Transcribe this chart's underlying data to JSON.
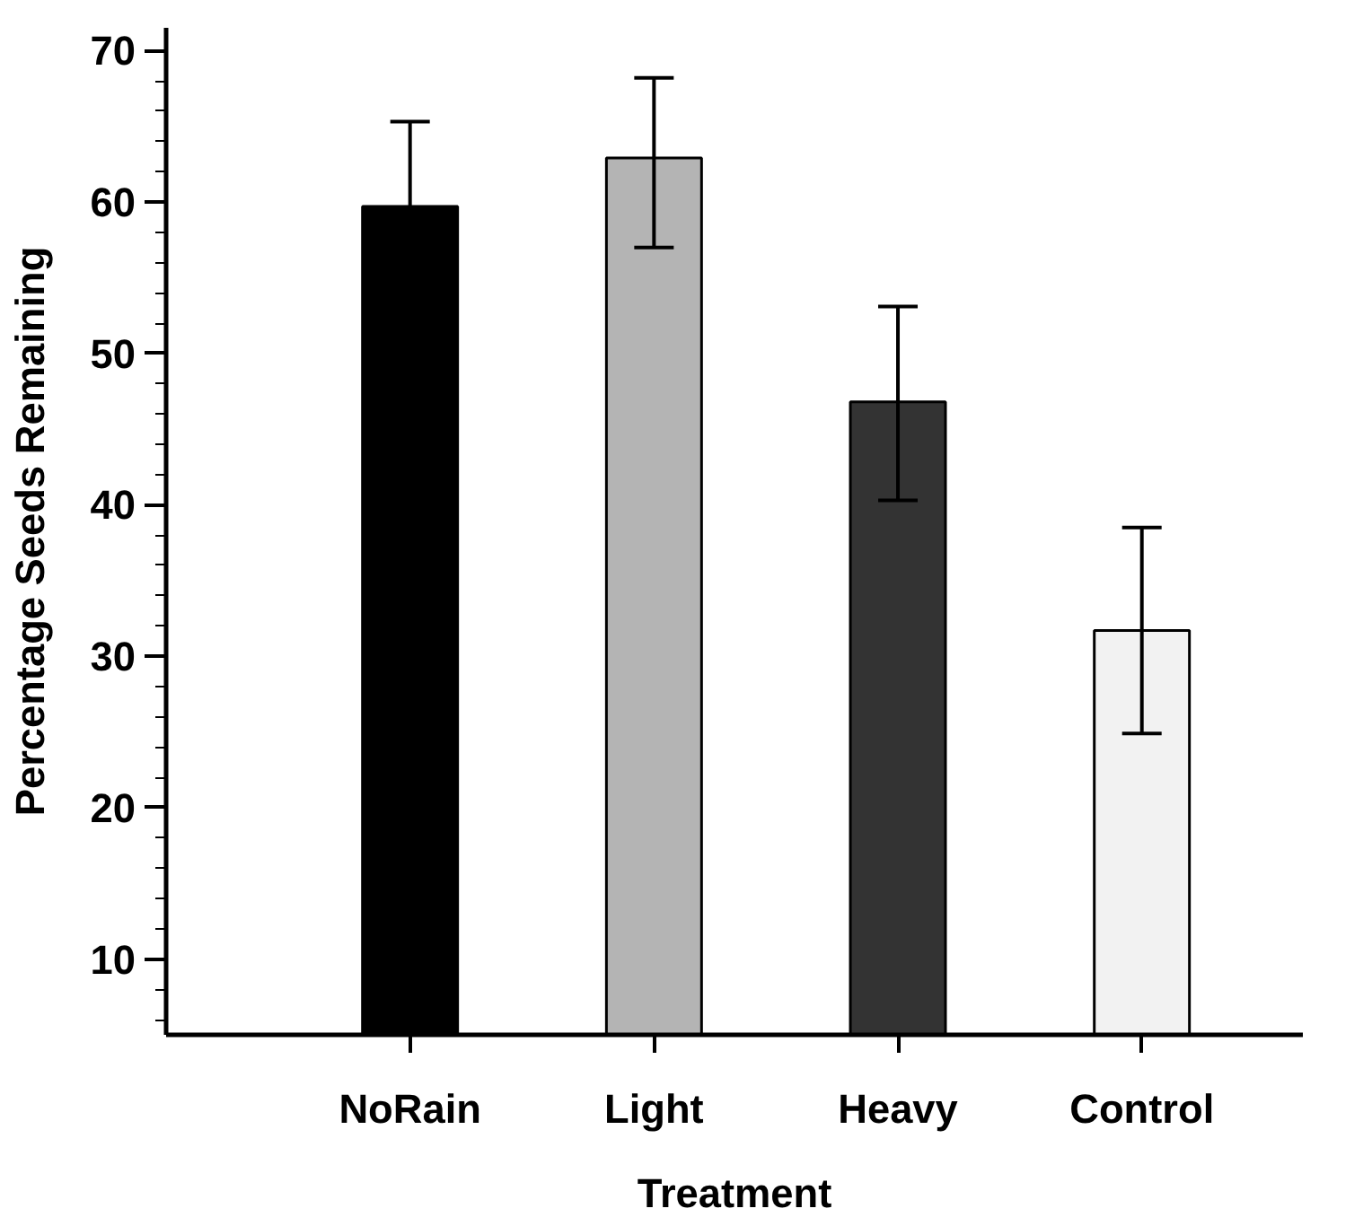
{
  "chart_data": {
    "type": "bar",
    "xlabel": "Treatment",
    "ylabel": "Percentage Seeds Remaining",
    "categories": [
      "NoRain",
      "Light",
      "Heavy",
      "Control"
    ],
    "values": [
      59.7,
      62.9,
      46.8,
      31.7
    ],
    "colors": [
      "#000000",
      "#b4b4b4",
      "#333333",
      "#f2f2f2"
    ],
    "errors": [
      5.6,
      [
        57.0,
        68.2
      ],
      [
        40.3,
        53.1
      ],
      [
        24.9,
        38.5
      ]
    ],
    "ylim": [
      5,
      71.5
    ],
    "yticks": [
      10,
      20,
      30,
      40,
      50,
      60,
      70
    ],
    "grid": false
  }
}
